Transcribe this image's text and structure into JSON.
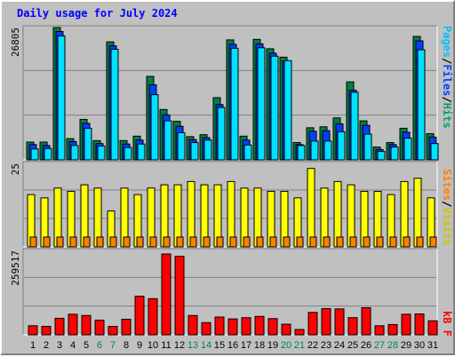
{
  "chart_data": {
    "type": "bar",
    "title": "Daily usage for July 2024",
    "days": [
      "1",
      "2",
      "3",
      "4",
      "5",
      "6",
      "7",
      "8",
      "9",
      "10",
      "11",
      "12",
      "13",
      "14",
      "15",
      "16",
      "17",
      "18",
      "19",
      "20",
      "21",
      "22",
      "23",
      "24",
      "25",
      "26",
      "27",
      "28",
      "29",
      "30",
      "31"
    ],
    "weekend_days": [
      "6",
      "7",
      "13",
      "14",
      "20",
      "21",
      "27",
      "28"
    ],
    "colors": {
      "hits": "#008040",
      "files": "#0040ff",
      "pages": "#00e0ff",
      "visits": "#ffff00",
      "sites": "#ff8000",
      "kbytes": "#ff0000",
      "weekday_label": "#000000",
      "weekend_label": "#00805c"
    },
    "panels": {
      "requests": {
        "max_label": "26805",
        "legend": [
          {
            "key": "pages",
            "text": "Pages",
            "color": "#00c0ff"
          },
          {
            "key": "sep1",
            "text": "/",
            "color": "#000000"
          },
          {
            "key": "files",
            "text": "Files",
            "color": "#0040ff"
          },
          {
            "key": "sep2",
            "text": "/",
            "color": "#000000"
          },
          {
            "key": "hits",
            "text": "Hits",
            "color": "#00a060"
          }
        ],
        "ylim": [
          0,
          26805
        ],
        "hits": [
          3600,
          3600,
          26805,
          4300,
          8200,
          3900,
          23900,
          3900,
          4800,
          16900,
          10200,
          7800,
          4700,
          5100,
          12600,
          24300,
          4800,
          24400,
          22500,
          20800,
          3500,
          6500,
          6700,
          8500,
          15800,
          7900,
          2600,
          3500,
          6400,
          25000,
          5300
        ],
        "files": [
          3100,
          2900,
          26000,
          3700,
          7400,
          3300,
          23100,
          3200,
          4000,
          15200,
          9100,
          6800,
          4100,
          4500,
          11200,
          23400,
          4000,
          23500,
          21600,
          20000,
          3100,
          5800,
          5900,
          7300,
          14100,
          7000,
          2100,
          3100,
          5600,
          24100,
          4600
        ],
        "pages": [
          2200,
          2300,
          25100,
          2900,
          6400,
          2800,
          22400,
          2500,
          3200,
          13200,
          7900,
          5500,
          3500,
          4000,
          10600,
          22600,
          3000,
          22700,
          21000,
          20100,
          2900,
          3800,
          3800,
          5700,
          13700,
          5200,
          1700,
          2600,
          4400,
          22300,
          3300
        ]
      },
      "visits": {
        "max_label": "25",
        "legend": [
          {
            "key": "sites",
            "text": "Sites",
            "color": "#ff8000"
          },
          {
            "key": "sep",
            "text": "/",
            "color": "#000000"
          },
          {
            "key": "visits",
            "text": "Visits",
            "color": "#c8c800"
          }
        ],
        "ylim": [
          0,
          25
        ],
        "visits": [
          16,
          15,
          18,
          17,
          19,
          18,
          11,
          18,
          16,
          18,
          19,
          19,
          20,
          19,
          19,
          20,
          18,
          18,
          17,
          17,
          15,
          24,
          18,
          20,
          19,
          17,
          17,
          16,
          20,
          21,
          15
        ],
        "sites": [
          3,
          3,
          3,
          3,
          3,
          3,
          3,
          3,
          3,
          3,
          3,
          3,
          3,
          3,
          3,
          3,
          3,
          3,
          3,
          3,
          3,
          3,
          3,
          3,
          3,
          3,
          3,
          3,
          3,
          3,
          3
        ]
      },
      "kbytes": {
        "max_label": "259517",
        "legend": [
          {
            "key": "kb",
            "text": "kB F",
            "color": "#ff0000"
          }
        ],
        "ylim": [
          0,
          259517
        ],
        "kbytes": [
          29000,
          27000,
          53000,
          66000,
          62000,
          47000,
          27000,
          50000,
          124000,
          116000,
          259517,
          252000,
          62000,
          39000,
          57000,
          51000,
          55000,
          59000,
          52000,
          34000,
          17000,
          72000,
          84000,
          83000,
          55000,
          87000,
          29000,
          33000,
          66000,
          67000,
          45000
        ]
      }
    }
  }
}
